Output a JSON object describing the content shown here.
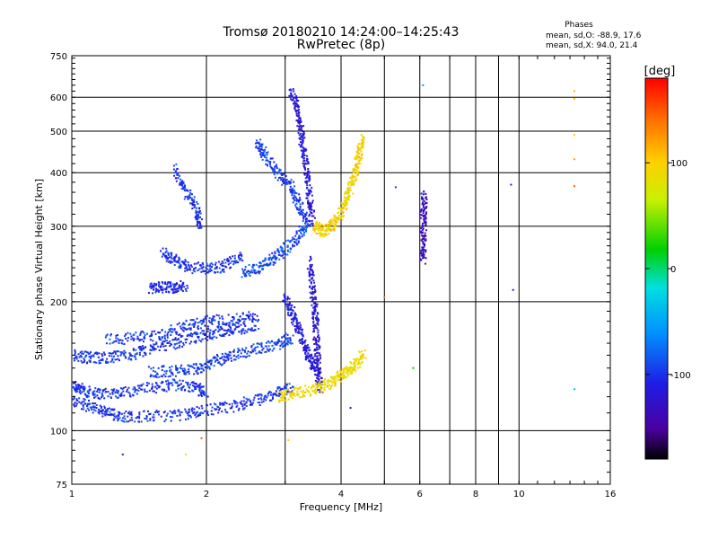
{
  "header": {
    "title": "Tromsø 20180210 14:24:00–14:25:43",
    "subtitle": "RwPretec (8p)",
    "phases_label": "Phases",
    "phases_o": "mean, sd,O: -88.9, 17.6",
    "phases_x": "mean, sd,X:  94.0, 21.4"
  },
  "colorbar": {
    "label": "[deg]",
    "range": [
      -180,
      180
    ],
    "ticks": [
      {
        "value": 100,
        "label": "100"
      },
      {
        "value": 0,
        "label": "0"
      },
      {
        "value": -100,
        "label": "-100"
      }
    ]
  },
  "chart_data": {
    "type": "scatter",
    "xlabel": "Frequency [MHz]",
    "ylabel": "Stationary phase Virtual Height [km]",
    "xscale": "log",
    "yscale": "log",
    "xlim": [
      1,
      16
    ],
    "ylim": [
      75,
      750
    ],
    "grid": true,
    "xticks": [
      {
        "value": 1,
        "label": "1"
      },
      {
        "value": 2,
        "label": "2"
      },
      {
        "value": 4,
        "label": "4"
      },
      {
        "value": 6,
        "label": "6"
      },
      {
        "value": 8,
        "label": "8"
      },
      {
        "value": 10,
        "label": "10"
      },
      {
        "value": 16,
        "label": "16"
      }
    ],
    "xminor": [
      3,
      5,
      7,
      9
    ],
    "yticks": [
      {
        "value": 750,
        "label": "750"
      },
      {
        "value": 600,
        "label": "600"
      },
      {
        "value": 500,
        "label": "500"
      },
      {
        "value": 400,
        "label": "400"
      },
      {
        "value": 300,
        "label": "300"
      },
      {
        "value": 200,
        "label": "200"
      },
      {
        "value": 100,
        "label": "100"
      },
      {
        "value": 75,
        "label": "75"
      }
    ],
    "traces": [
      {
        "phase": -100,
        "points": [
          [
            1.0,
            128
          ],
          [
            1.06,
            124
          ],
          [
            1.15,
            122
          ],
          [
            1.3,
            123
          ],
          [
            1.5,
            126
          ],
          [
            1.7,
            128
          ],
          [
            1.9,
            127
          ],
          [
            2.0,
            122
          ]
        ]
      },
      {
        "phase": -100,
        "points": [
          [
            1.0,
            117
          ],
          [
            1.1,
            114
          ],
          [
            1.2,
            110
          ],
          [
            1.3,
            108
          ],
          [
            1.5,
            108
          ],
          [
            1.8,
            109
          ],
          [
            2.0,
            112
          ],
          [
            2.3,
            114
          ],
          [
            2.6,
            118
          ],
          [
            2.9,
            123
          ],
          [
            3.1,
            127
          ]
        ]
      },
      {
        "phase": -100,
        "points": [
          [
            1.0,
            150
          ],
          [
            1.1,
            148
          ],
          [
            1.2,
            148
          ],
          [
            1.35,
            150
          ],
          [
            1.5,
            155
          ],
          [
            1.7,
            160
          ],
          [
            1.9,
            165
          ],
          [
            2.1,
            170
          ],
          [
            2.3,
            172
          ],
          [
            2.6,
            176
          ]
        ]
      },
      {
        "phase": -100,
        "points": [
          [
            1.2,
            163
          ],
          [
            1.4,
            165
          ],
          [
            1.6,
            168
          ],
          [
            1.8,
            175
          ],
          [
            2.0,
            180
          ],
          [
            2.3,
            182
          ],
          [
            2.6,
            186
          ]
        ]
      },
      {
        "phase": -95,
        "points": [
          [
            1.5,
            137
          ],
          [
            1.7,
            138
          ],
          [
            1.9,
            140
          ],
          [
            2.1,
            145
          ],
          [
            2.3,
            150
          ],
          [
            2.6,
            155
          ],
          [
            2.9,
            160
          ],
          [
            3.1,
            165
          ]
        ]
      },
      {
        "phase": -110,
        "points": [
          [
            1.5,
            215
          ],
          [
            1.6,
            216
          ],
          [
            1.7,
            216
          ],
          [
            1.8,
            218
          ]
        ]
      },
      {
        "phase": -100,
        "points": [
          [
            1.6,
            260
          ],
          [
            1.7,
            250
          ],
          [
            1.8,
            242
          ],
          [
            2.0,
            238
          ],
          [
            2.2,
            242
          ],
          [
            2.4,
            255
          ]
        ]
      },
      {
        "phase": -90,
        "points": [
          [
            2.4,
            235
          ],
          [
            2.6,
            238
          ],
          [
            2.8,
            250
          ],
          [
            3.0,
            265
          ],
          [
            3.2,
            285
          ],
          [
            3.4,
            305
          ]
        ]
      },
      {
        "phase": -100,
        "points": [
          [
            1.7,
            410
          ],
          [
            1.8,
            360
          ],
          [
            1.9,
            330
          ],
          [
            1.95,
            300
          ]
        ]
      },
      {
        "phase": -95,
        "points": [
          [
            2.6,
            470
          ],
          [
            2.7,
            440
          ],
          [
            2.9,
            400
          ],
          [
            3.1,
            370
          ],
          [
            3.2,
            340
          ],
          [
            3.35,
            310
          ]
        ]
      },
      {
        "phase": -120,
        "points": [
          [
            3.1,
            620
          ],
          [
            3.2,
            560
          ],
          [
            3.25,
            500
          ],
          [
            3.3,
            450
          ],
          [
            3.35,
            400
          ],
          [
            3.4,
            350
          ],
          [
            3.45,
            310
          ]
        ]
      },
      {
        "phase": -120,
        "points": [
          [
            3.4,
            250
          ],
          [
            3.45,
            215
          ],
          [
            3.5,
            190
          ],
          [
            3.52,
            170
          ],
          [
            3.55,
            150
          ],
          [
            3.55,
            135
          ],
          [
            3.6,
            125
          ]
        ]
      },
      {
        "phase": -115,
        "points": [
          [
            3.0,
            205
          ],
          [
            3.1,
            190
          ],
          [
            3.2,
            175
          ],
          [
            3.3,
            160
          ],
          [
            3.4,
            148
          ],
          [
            3.5,
            140
          ]
        ]
      },
      {
        "phase": 90,
        "points": [
          [
            2.9,
            120
          ],
          [
            3.1,
            122
          ],
          [
            3.4,
            124
          ],
          [
            3.7,
            128
          ],
          [
            3.9,
            132
          ],
          [
            4.1,
            136
          ],
          [
            4.3,
            142
          ],
          [
            4.5,
            152
          ]
        ]
      },
      {
        "phase": 95,
        "points": [
          [
            3.5,
            300
          ],
          [
            3.65,
            292
          ],
          [
            3.8,
            300
          ],
          [
            3.95,
            315
          ],
          [
            4.1,
            340
          ],
          [
            4.2,
            370
          ],
          [
            4.3,
            400
          ],
          [
            4.4,
            440
          ],
          [
            4.45,
            480
          ]
        ]
      },
      {
        "phase": -130,
        "points": [
          [
            6.1,
            250
          ],
          [
            6.12,
            280
          ],
          [
            6.12,
            320
          ],
          [
            6.15,
            360
          ]
        ]
      }
    ],
    "isolated": [
      {
        "f": 6.1,
        "h": 640,
        "phase": -60
      },
      {
        "f": 9.6,
        "h": 375,
        "phase": -110
      },
      {
        "f": 9.7,
        "h": 213,
        "phase": -110
      },
      {
        "f": 13.3,
        "h": 620,
        "phase": 110
      },
      {
        "f": 13.3,
        "h": 595,
        "phase": 110
      },
      {
        "f": 13.3,
        "h": 490,
        "phase": 100
      },
      {
        "f": 13.3,
        "h": 430,
        "phase": 120
      },
      {
        "f": 13.3,
        "h": 372,
        "phase": 150
      },
      {
        "f": 13.3,
        "h": 125,
        "phase": -30
      },
      {
        "f": 1.3,
        "h": 88,
        "phase": -110
      },
      {
        "f": 1.8,
        "h": 88,
        "phase": 100
      },
      {
        "f": 1.95,
        "h": 96,
        "phase": 150
      },
      {
        "f": 3.05,
        "h": 95,
        "phase": 100
      },
      {
        "f": 4.2,
        "h": 113,
        "phase": -150
      },
      {
        "f": 5.3,
        "h": 370,
        "phase": -100
      },
      {
        "f": 5.0,
        "h": 205,
        "phase": 140
      },
      {
        "f": 5.8,
        "h": 140,
        "phase": 20
      }
    ]
  }
}
